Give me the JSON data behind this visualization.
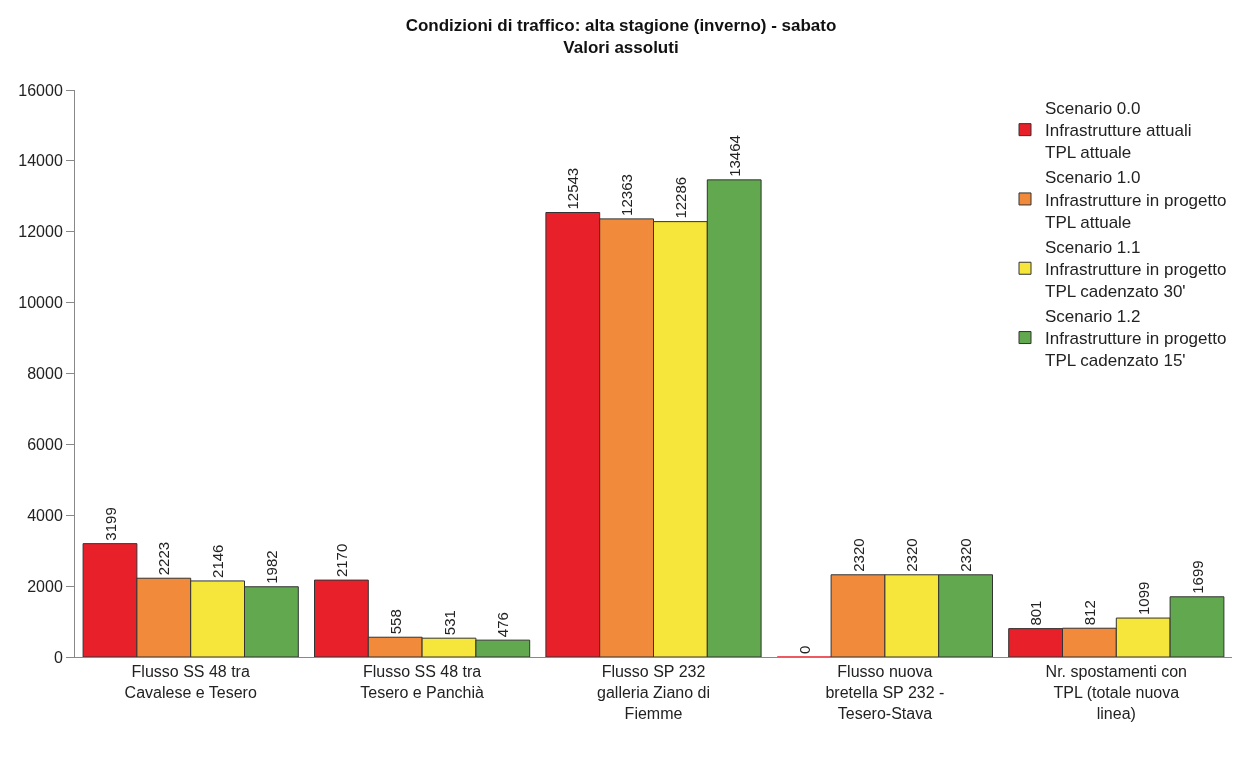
{
  "chart_data": {
    "type": "bar",
    "title": "Condizioni di traffico: alta stagione (inverno) - sabato",
    "subtitle": "Valori assoluti",
    "categories": [
      "Flusso SS 48 tra Cavalese e Tesero",
      "Flusso SS 48 tra Tesero e Panchià",
      "Flusso SP 232 galleria Ziano di Fiemme",
      "Flusso nuova bretella SP 232 - Tesero-Stava",
      "Nr. spostamenti con TPL (totale nuova linea)"
    ],
    "series": [
      {
        "name": "Scenario 0.0\nInfrastrutture attuali\nTPL attuale",
        "color": "#e8202a",
        "values": [
          3199,
          2170,
          12543,
          0,
          801
        ]
      },
      {
        "name": "Scenario 1.0\nInfrastrutture in progetto\nTPL attuale",
        "color": "#f28a3c",
        "values": [
          2223,
          558,
          12363,
          2320,
          812
        ]
      },
      {
        "name": "Scenario 1.1\nInfrastrutture in progetto\nTPL cadenzato 30'",
        "color": "#f6e53a",
        "values": [
          2146,
          531,
          12286,
          2320,
          1099
        ]
      },
      {
        "name": "Scenario 1.2\nInfrastrutture in progetto\nTPL cadenzato 15'",
        "color": "#62a84e",
        "values": [
          1982,
          476,
          13464,
          2320,
          1699
        ]
      }
    ],
    "ylim": [
      0,
      16000
    ],
    "yticks": [
      0,
      2000,
      4000,
      6000,
      8000,
      10000,
      12000,
      14000,
      16000
    ],
    "data_labels": true,
    "legend": "top right"
  }
}
